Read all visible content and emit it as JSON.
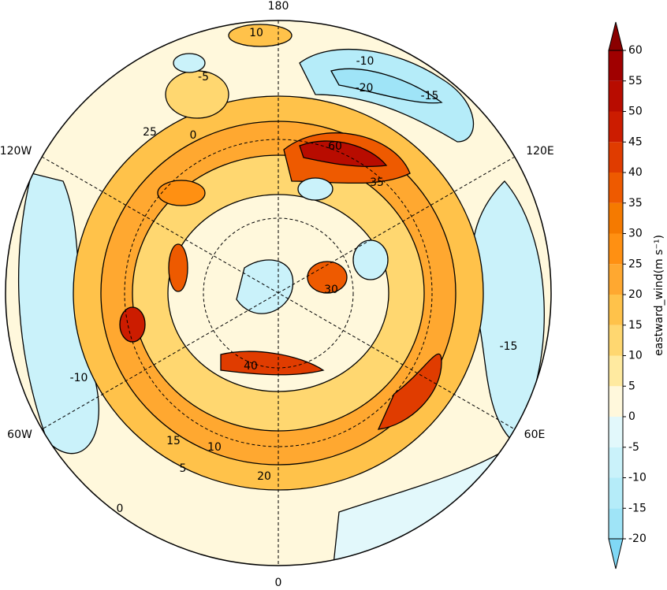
{
  "map": {
    "longitude_labels": [
      "180",
      "120W",
      "120E",
      "60W",
      "60E",
      "0"
    ],
    "contour_labels": [
      "60",
      "-20",
      "-15",
      "-10",
      "-5",
      "35",
      "30",
      "40",
      "20",
      "25",
      "15",
      "10",
      "5",
      "0",
      "-10",
      "-15",
      "10",
      "0"
    ]
  },
  "colorbar": {
    "label": "eastward_wind(m s⁻¹)",
    "ticks": [
      -20,
      -15,
      -10,
      -5,
      0,
      5,
      10,
      15,
      20,
      25,
      30,
      35,
      40,
      45,
      50,
      55,
      60
    ],
    "colors": [
      "#9fe4f7",
      "#b5ecf9",
      "#caf2fa",
      "#e2f8fb",
      "#fff8dc",
      "#ffeaa0",
      "#ffd770",
      "#ffc24a",
      "#ffa830",
      "#ff9012",
      "#f57a00",
      "#ee5a00",
      "#e03c00",
      "#cc1c00",
      "#b80c00",
      "#a00000"
    ],
    "under_color": "#80d8f5",
    "over_color": "#8a0000"
  }
}
